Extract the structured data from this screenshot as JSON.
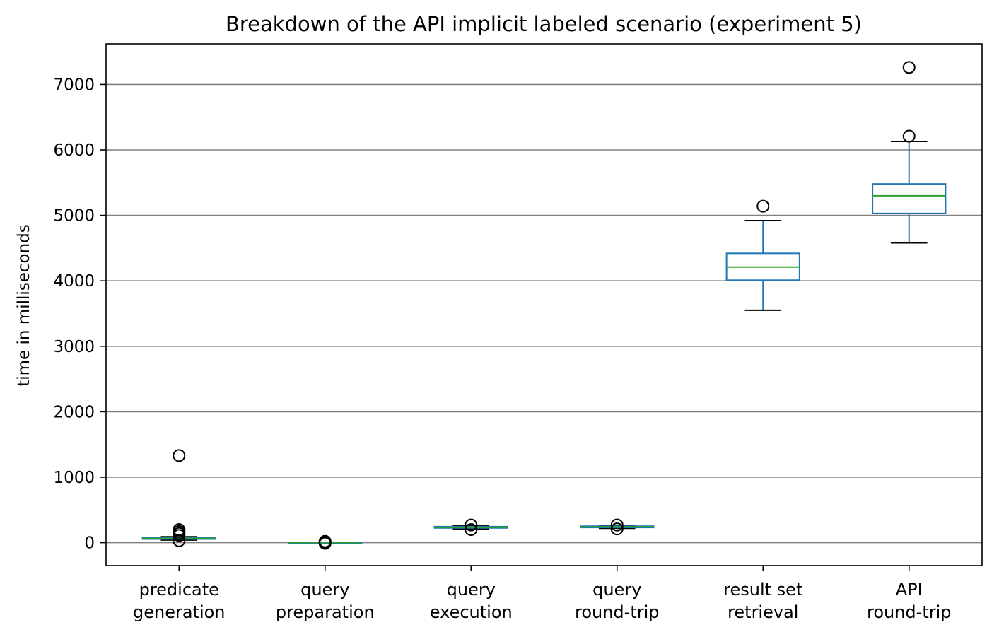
{
  "chart_data": {
    "type": "box",
    "title": "Breakdown of the API implicit labeled scenario (experiment 5)",
    "xlabel": "",
    "ylabel": "time in milliseconds",
    "ylim": [
      -350,
      7620
    ],
    "yticks": [
      0,
      1000,
      2000,
      3000,
      4000,
      5000,
      6000,
      7000
    ],
    "grid": "horizontal",
    "categories": [
      [
        "predicate",
        "generation"
      ],
      [
        "query",
        "preparation"
      ],
      [
        "query",
        "execution"
      ],
      [
        "query",
        "round-trip"
      ],
      [
        "result set",
        "retrieval"
      ],
      [
        "API",
        "round-trip"
      ]
    ],
    "boxes": [
      {
        "whisker_low": 40,
        "q1": 55,
        "median": 65,
        "q3": 75,
        "whisker_high": 90,
        "outliers": [
          30,
          110,
          140,
          170,
          200,
          1330
        ]
      },
      {
        "whisker_low": 0,
        "q1": 0,
        "median": 2,
        "q3": 4,
        "whisker_high": 6,
        "outliers": [
          -10,
          5,
          20
        ]
      },
      {
        "whisker_low": 210,
        "q1": 225,
        "median": 235,
        "q3": 245,
        "whisker_high": 255,
        "outliers": [
          200,
          270
        ]
      },
      {
        "whisker_low": 220,
        "q1": 232,
        "median": 242,
        "q3": 252,
        "whisker_high": 262,
        "outliers": [
          210,
          270
        ]
      },
      {
        "whisker_low": 3550,
        "q1": 4010,
        "median": 4210,
        "q3": 4420,
        "whisker_high": 4920,
        "outliers": [
          5140
        ]
      },
      {
        "whisker_low": 4580,
        "q1": 5030,
        "median": 5300,
        "q3": 5480,
        "whisker_high": 6130,
        "outliers": [
          6210,
          7260
        ]
      }
    ],
    "colors": {
      "box": "#1f77b4",
      "median": "#2ca02c",
      "cap": "#000000",
      "grid": "#808080"
    }
  }
}
